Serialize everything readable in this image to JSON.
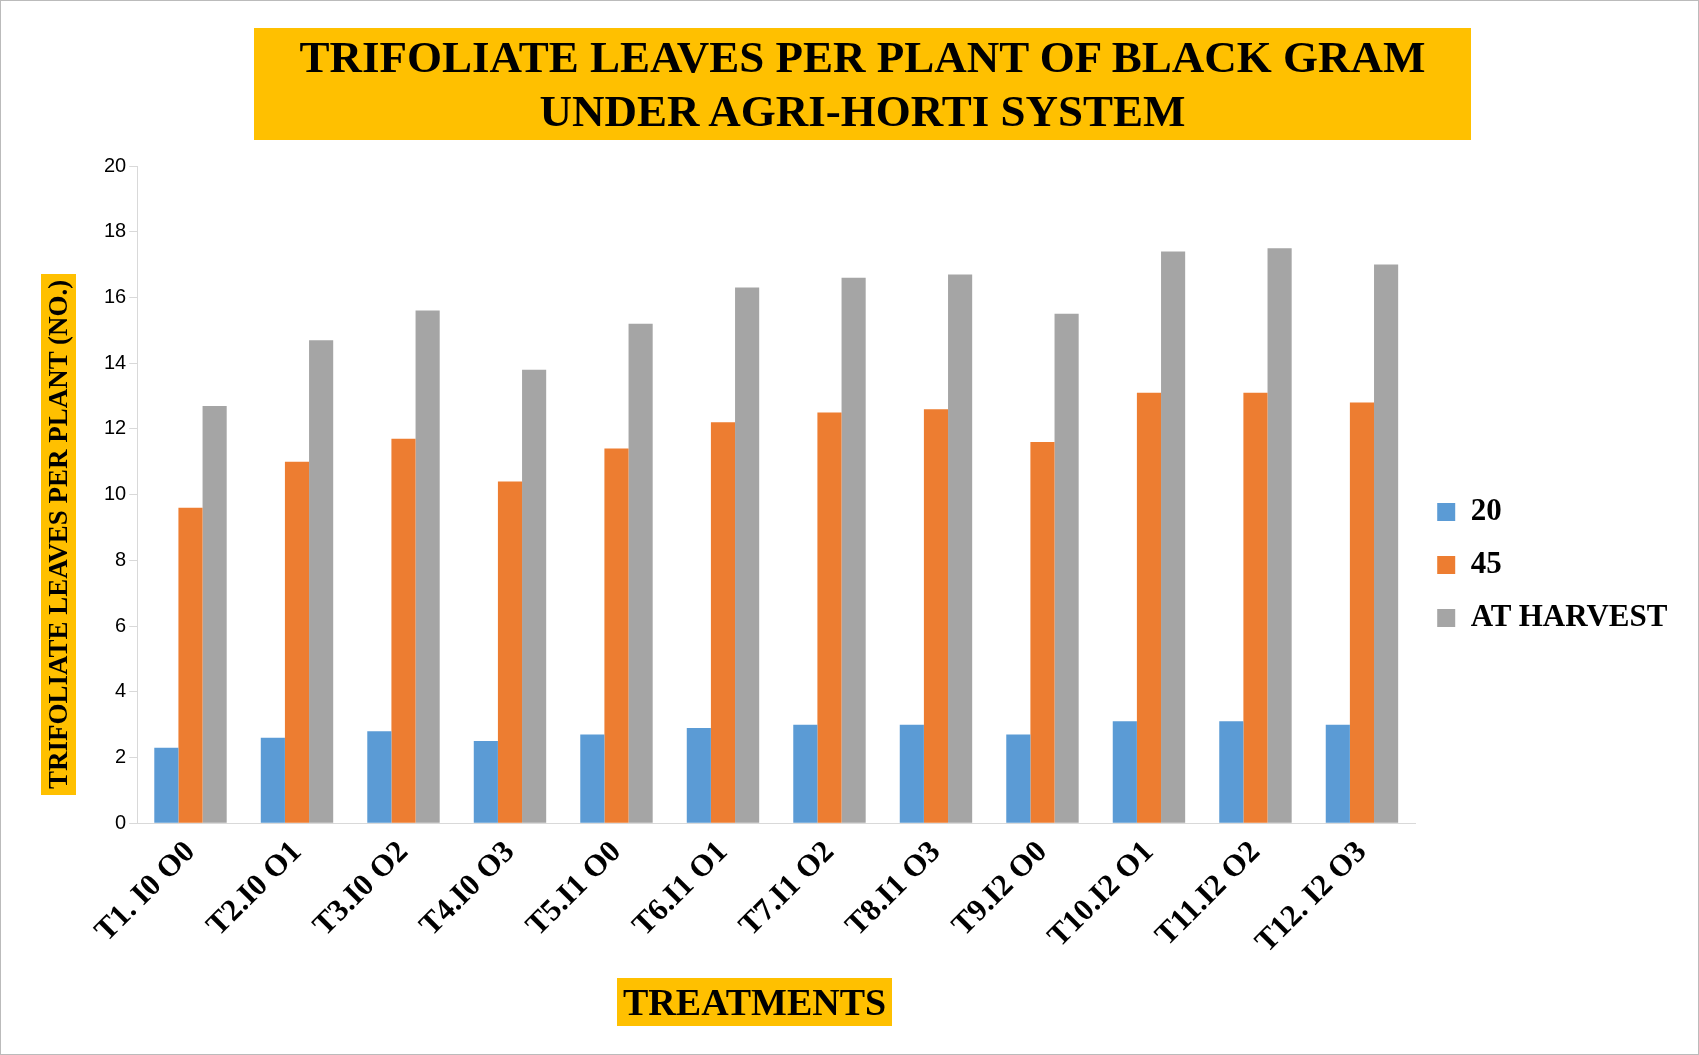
{
  "chart_data": {
    "type": "bar",
    "title": "TRIFOLIATE LEAVES PER PLANT OF BLACK GRAM\nUNDER AGRI-HORTI SYSTEM",
    "xlabel": "TREATMENTS",
    "ylabel": "TRIFOLIATE LEAVES PER PLANT (NO.)",
    "categories": [
      "T1. I0 O0",
      "T2.I0 O1",
      "T3.I0 O2",
      "T4.I0 O3",
      "T5.I1 O0",
      "T6.I1 O1",
      "T7.I1 O2",
      "T8.I1 O3",
      "T9.I2 O0",
      "T10.I2 O1",
      "T11.I2 O2",
      "T12. I2 O3"
    ],
    "series": [
      {
        "name": "20",
        "color": "#5b9bd5",
        "values": [
          2.3,
          2.6,
          2.8,
          2.5,
          2.7,
          2.9,
          3.0,
          3.0,
          2.7,
          3.1,
          3.1,
          3.0
        ]
      },
      {
        "name": "45",
        "color": "#ed7d31",
        "values": [
          9.6,
          11.0,
          11.7,
          10.4,
          11.4,
          12.2,
          12.5,
          12.6,
          11.6,
          13.1,
          13.1,
          12.8
        ]
      },
      {
        "name": "AT HARVEST",
        "color": "#a5a5a5",
        "values": [
          12.7,
          14.7,
          15.6,
          13.8,
          15.2,
          16.3,
          16.6,
          16.7,
          15.5,
          17.4,
          17.5,
          17.0
        ]
      }
    ],
    "ylim": [
      0,
      20
    ],
    "yticks": [
      0,
      2,
      4,
      6,
      8,
      10,
      12,
      14,
      16,
      18,
      20
    ],
    "grid": false,
    "legend": "right"
  }
}
